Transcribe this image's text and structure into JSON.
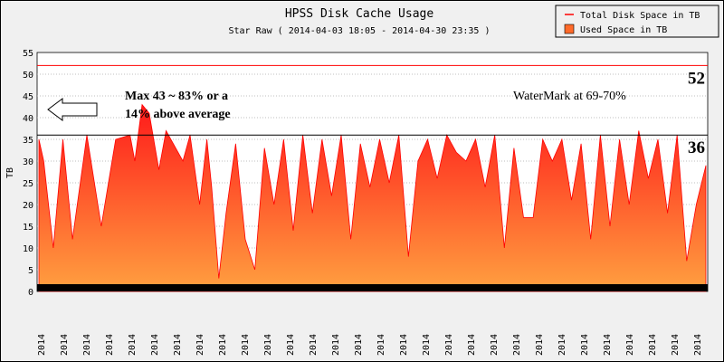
{
  "chart_data": {
    "type": "area",
    "title": "HPSS Disk Cache Usage",
    "subtitle": "Star Raw ( 2014-04-03 18:05 - 2014-04-30 23:35 )",
    "ylabel": "TB",
    "xlabel": "",
    "ylim": [
      0,
      55
    ],
    "yticks": [
      0,
      5,
      10,
      15,
      20,
      25,
      30,
      35,
      40,
      45,
      50,
      55
    ],
    "xtick_label": "2014",
    "xtick_count": 30,
    "grid": true,
    "legend_position": "top-right",
    "legend": [
      {
        "name": "Total Disk Space in TB",
        "color": "#ff0000",
        "kind": "line"
      },
      {
        "name": "Used Space in TB",
        "color": "#ff6a2a",
        "kind": "area"
      }
    ],
    "series": [
      {
        "name": "Total Disk Space in TB",
        "kind": "line",
        "values_constant": 52
      },
      {
        "name": "Used Space in TB",
        "kind": "area",
        "x": [
          0.0,
          0.2,
          0.6,
          1.0,
          1.4,
          2.0,
          2.6,
          3.2,
          3.8,
          4.0,
          4.3,
          4.6,
          5.0,
          5.3,
          5.6,
          6.0,
          6.3,
          6.7,
          7.0,
          7.2,
          7.5,
          7.8,
          8.2,
          8.6,
          9.0,
          9.4,
          9.8,
          10.2,
          10.6,
          11.0,
          11.4,
          11.8,
          12.2,
          12.6,
          13.0,
          13.4,
          13.8,
          14.2,
          14.6,
          15.0,
          15.4,
          15.8,
          16.2,
          16.6,
          17.0,
          17.4,
          17.8,
          18.2,
          18.6,
          19.0,
          19.4,
          19.8,
          20.2,
          20.6,
          21.0,
          21.4,
          21.8,
          22.2,
          22.6,
          23.0,
          23.4,
          23.8,
          24.2,
          24.6,
          25.0,
          25.4,
          25.8,
          26.2,
          26.6,
          27.0,
          27.4,
          27.8
        ],
        "values": [
          35,
          30,
          10,
          35,
          12,
          36,
          15,
          35,
          36,
          30,
          43,
          41,
          28,
          37,
          34,
          30,
          36,
          20,
          35,
          24,
          3,
          18,
          34,
          12,
          5,
          33,
          20,
          35,
          14,
          36,
          18,
          35,
          22,
          36,
          12,
          34,
          24,
          35,
          25,
          36,
          8,
          30,
          35,
          26,
          36,
          32,
          30,
          35,
          24,
          36,
          10,
          33,
          17,
          17,
          35,
          30,
          35,
          21,
          34,
          12,
          36,
          15,
          35,
          20,
          37,
          26,
          35,
          18,
          36,
          7,
          20,
          29
        ]
      }
    ],
    "reference_lines": [
      {
        "value": 52,
        "label": "52",
        "color": "#ff0000"
      },
      {
        "value": 36,
        "label": "36",
        "color": "#000000"
      }
    ],
    "annotations": [
      {
        "text_lines": [
          "Max 43 ~ 83% or a",
          "14% above average"
        ]
      },
      {
        "text_lines": [
          "WaterMark at 69-70%"
        ]
      }
    ]
  }
}
